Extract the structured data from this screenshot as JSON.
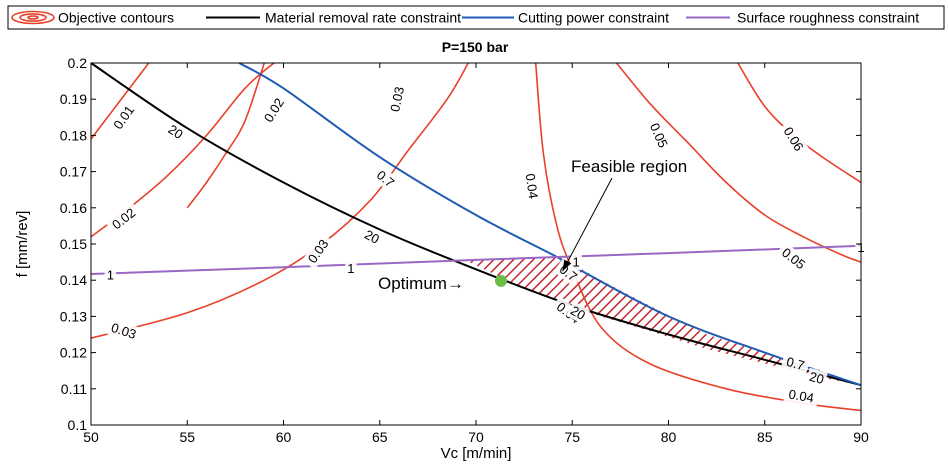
{
  "chart_data": {
    "type": "line",
    "title": "P=150 bar",
    "xlabel": "Vc [m/min]",
    "ylabel": "f [mm/rev]",
    "xlim": [
      50,
      90
    ],
    "ylim": [
      0.1,
      0.2
    ],
    "xticks": [
      "50",
      "55",
      "60",
      "65",
      "70",
      "75",
      "80",
      "85",
      "90"
    ],
    "yticks": [
      "0.1",
      "0.11",
      "0.12",
      "0.13",
      "0.14",
      "0.15",
      "0.16",
      "0.17",
      "0.18",
      "0.19",
      "0.2"
    ],
    "grid": false,
    "legend": {
      "placement": "top",
      "entries": [
        "Objective contours",
        "Material removal rate constraint",
        "Cutting power constraint",
        "Surface roughness constraint"
      ]
    },
    "colors": {
      "objective": "#e8412a",
      "mrr": "#000000",
      "power": "#1f5bb5",
      "roughness": "#9b67c4",
      "optimum": "#6cbd45",
      "hatch": "#c2272d"
    },
    "series": [
      {
        "name": "Material removal rate constraint",
        "x": [
          50,
          55,
          60,
          65,
          70,
          75,
          80,
          85,
          90
        ],
        "y": [
          0.2,
          0.182,
          0.167,
          0.154,
          0.143,
          0.133,
          0.125,
          0.118,
          0.111
        ]
      },
      {
        "name": "Cutting power constraint",
        "x": [
          57.7,
          60,
          65,
          70,
          74,
          75,
          80,
          85,
          90
        ],
        "y": [
          0.2,
          0.193,
          0.174,
          0.158,
          0.147,
          0.144,
          0.13,
          0.12,
          0.111
        ]
      },
      {
        "name": "Surface roughness constraint",
        "x": [
          50,
          60,
          70,
          80,
          90
        ],
        "y": [
          0.1417,
          0.1436,
          0.1456,
          0.1475,
          0.1495
        ]
      }
    ],
    "objective_contours": [
      {
        "level": "0.01",
        "x": [
          50,
          51,
          52,
          53
        ],
        "y": [
          0.179,
          0.186,
          0.193,
          0.2
        ]
      },
      {
        "level": "0.02",
        "x": [
          50,
          52,
          54,
          56,
          58,
          59.5
        ],
        "y": [
          0.152,
          0.16,
          0.169,
          0.18,
          0.193,
          0.2
        ]
      },
      {
        "level": "0.02",
        "x": [
          55,
          56,
          57,
          58,
          59
        ],
        "y": [
          0.16,
          0.167,
          0.175,
          0.184,
          0.2
        ]
      },
      {
        "level": "0.03",
        "x": [
          50,
          55,
          59,
          62,
          64.5,
          66.5,
          68.5,
          69.6
        ],
        "y": [
          0.124,
          0.131,
          0.14,
          0.15,
          0.162,
          0.176,
          0.19,
          0.2
        ]
      },
      {
        "level": "0.04",
        "x": [
          73.1,
          73.5,
          74.2,
          75,
          76.5,
          79,
          83,
          87,
          90
        ],
        "y": [
          0.2,
          0.175,
          0.155,
          0.143,
          0.127,
          0.117,
          0.11,
          0.106,
          0.104
        ]
      },
      {
        "level": "0.05",
        "x": [
          77.3,
          79,
          81,
          83,
          85,
          87,
          89,
          90
        ],
        "y": [
          0.2,
          0.189,
          0.178,
          0.167,
          0.158,
          0.152,
          0.147,
          0.145
        ]
      },
      {
        "level": "0.06",
        "x": [
          83.6,
          85,
          86.5,
          88,
          90
        ],
        "y": [
          0.2,
          0.188,
          0.18,
          0.174,
          0.167
        ]
      }
    ],
    "contour_labels": [
      {
        "text": "0.01",
        "x": 51.7,
        "y": 0.185,
        "angle": -55
      },
      {
        "text": "20",
        "x": 54.4,
        "y": 0.181,
        "angle": 34
      },
      {
        "text": "0.02",
        "x": 59.5,
        "y": 0.187,
        "angle": -58
      },
      {
        "text": "0.03",
        "x": 65.9,
        "y": 0.19,
        "angle": -78
      },
      {
        "text": "0.04",
        "x": 72.9,
        "y": 0.166,
        "angle": 82
      },
      {
        "text": "0.05",
        "x": 79.5,
        "y": 0.18,
        "angle": 66
      },
      {
        "text": "0.06",
        "x": 86.5,
        "y": 0.179,
        "angle": 58
      },
      {
        "text": "0.7",
        "x": 65.3,
        "y": 0.168,
        "angle": 40
      },
      {
        "text": "0.02",
        "x": 51.7,
        "y": 0.157,
        "angle": -38
      },
      {
        "text": "20",
        "x": 64.6,
        "y": 0.152,
        "angle": 28
      },
      {
        "text": "0.03",
        "x": 61.8,
        "y": 0.148,
        "angle": -55
      },
      {
        "text": "1",
        "x": 90,
        "y": 0.149,
        "angle": 0
      },
      {
        "text": "1",
        "x": 75.2,
        "y": 0.145,
        "angle": 0
      },
      {
        "text": "1",
        "x": 51,
        "y": 0.1414,
        "angle": 0
      },
      {
        "text": "1",
        "x": 63.5,
        "y": 0.1432,
        "angle": 0
      },
      {
        "text": "0.05",
        "x": 86.5,
        "y": 0.146,
        "angle": 38
      },
      {
        "text": "0.7",
        "x": 74.8,
        "y": 0.142,
        "angle": 38
      },
      {
        "text": "0.04",
        "x": 74.8,
        "y": 0.131,
        "angle": 38
      },
      {
        "text": "20",
        "x": 75.3,
        "y": 0.131,
        "angle": 30
      },
      {
        "text": "0.03",
        "x": 51.7,
        "y": 0.126,
        "angle": 18
      },
      {
        "text": "0.7",
        "x": 86.6,
        "y": 0.117,
        "angle": 15
      },
      {
        "text": "20",
        "x": 87.7,
        "y": 0.113,
        "angle": 15
      },
      {
        "text": "0.04",
        "x": 86.9,
        "y": 0.108,
        "angle": 10
      }
    ],
    "feasible_region": {
      "label": "Feasible region",
      "x": [
        69.4,
        72,
        74.3,
        76.5,
        79,
        82,
        85,
        88,
        90
      ],
      "upper": [
        0.1456,
        0.1461,
        0.1466,
        0.14,
        0.133,
        0.125,
        0.12,
        0.115,
        0.111
      ],
      "lower": [
        0.1456,
        0.139,
        0.134,
        0.13,
        0.126,
        0.121,
        0.117,
        0.113,
        0.111
      ]
    },
    "optimum": {
      "label": "Optimum→",
      "x": 71.3,
      "y": 0.1398
    }
  }
}
